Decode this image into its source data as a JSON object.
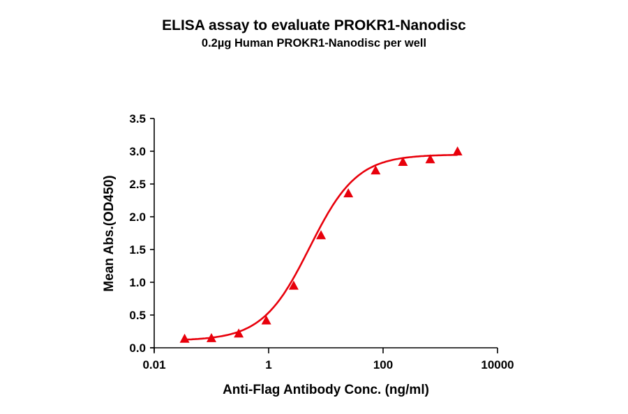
{
  "title": "ELISA assay to evaluate PROKR1-Nanodisc",
  "subtitle": "0.2µg Human PROKR1-Nanodisc per well",
  "chart_data": {
    "type": "scatter",
    "title": "ELISA assay to evaluate PROKR1-Nanodisc",
    "subtitle": "0.2µg Human PROKR1-Nanodisc per well",
    "xlabel": "Anti-Flag Antibody Conc. (ng/ml)",
    "ylabel": "Mean Abs.(OD450)",
    "xscale": "log",
    "xlim": [
      0.01,
      10000
    ],
    "ylim": [
      0.0,
      3.5
    ],
    "xticks": [
      "0.01",
      "1",
      "100",
      "10000"
    ],
    "yticks": [
      "0.0",
      "0.5",
      "1.0",
      "1.5",
      "2.0",
      "2.5",
      "3.0",
      "3.5"
    ],
    "grid": false,
    "legend": null,
    "fit": "4-parameter logistic curve",
    "marker": "triangle",
    "color": "#e8000b",
    "series": [
      {
        "name": "PROKR1-Nanodisc",
        "x": [
          0.034,
          0.1,
          0.3,
          0.91,
          2.74,
          8.23,
          24.7,
          74.1,
          222.2,
          666.7,
          2000
        ],
        "y": [
          0.13,
          0.14,
          0.21,
          0.41,
          0.94,
          1.71,
          2.35,
          2.7,
          2.83,
          2.87,
          2.99
        ]
      }
    ]
  }
}
